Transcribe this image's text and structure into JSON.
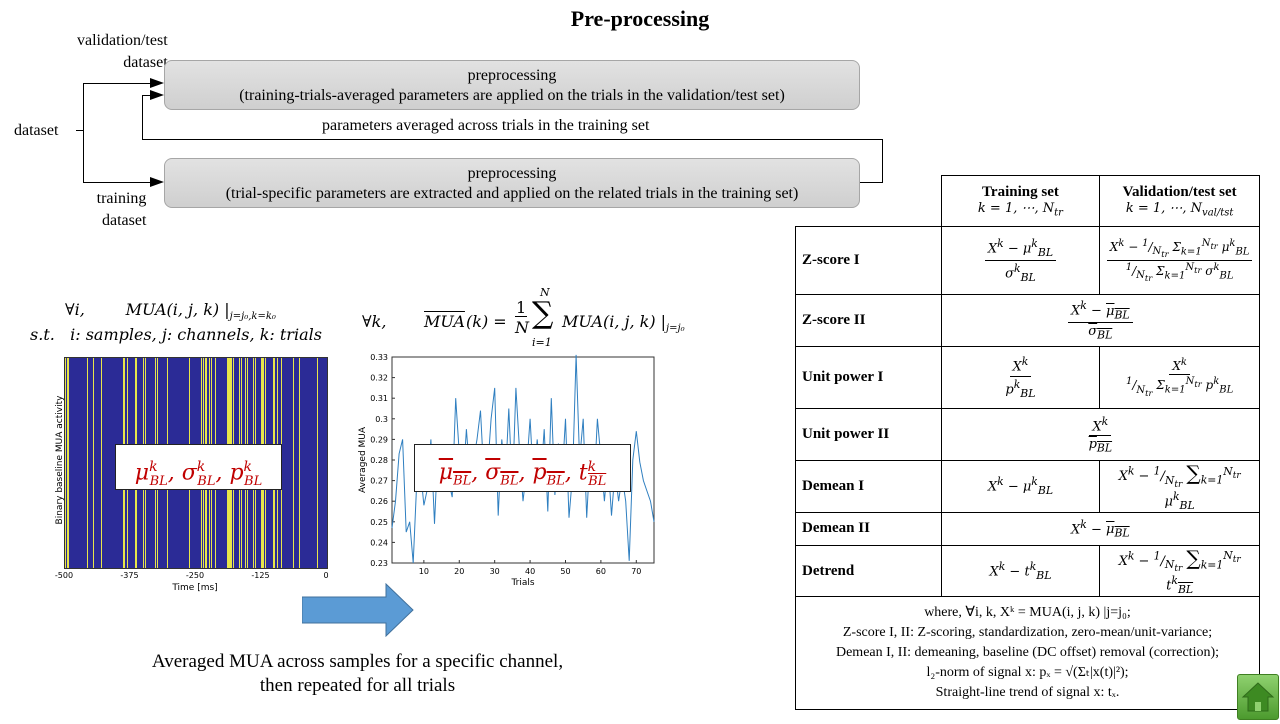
{
  "title": "Pre-processing",
  "flow": {
    "validation_label_1": "validation/test",
    "validation_label_2": "dataset",
    "dataset_label": "dataset",
    "training_label_1": "training",
    "training_label_2": "dataset",
    "box_top_line1": "preprocessing",
    "box_top_line2": "(training-trials-averaged  parameters are applied on the trials in the validation/test  set)",
    "params_label": "parameters averaged across trials in the training  set",
    "box_bottom_line1": "preprocessing",
    "box_bottom_line2": "(trial-specific  parameters are extracted and applied on the related trials in the training  set)"
  },
  "formula_left": {
    "line1": "∀i,        MUA(i, j, k) |j=j₀,k=k₀",
    "line2": "s.t.    i: samples, j: channels, k: trials"
  },
  "formula_right": "∀k,      MUA(k) = (1/N) Σᵢ₌₁ᴺ MUA(i, j, k) |j=j₀",
  "raster_plot": {
    "ylabel": "Binary baseline MUA activity",
    "xlabel": "Time [ms]",
    "xticks": [
      "-500",
      "-375",
      "-250",
      "-125",
      "0"
    ],
    "overlay": "μᵏBL, σᵏBL, pᵏBL",
    "bg_color": "#2b2b96",
    "line_color": "#e8e64a"
  },
  "chart_data": {
    "type": "line",
    "xlabel": "Trials",
    "ylabel": "Averaged MUA",
    "xlim": [
      1,
      75
    ],
    "ylim": [
      0.23,
      0.33
    ],
    "xticks": [
      10,
      20,
      30,
      40,
      50,
      60,
      70
    ],
    "yticks": [
      "0.23",
      "0.24",
      "0.25",
      "0.26",
      "0.27",
      "0.28",
      "0.29",
      "0.3",
      "0.31",
      "0.32",
      "0.33"
    ],
    "x": [
      1,
      2,
      3,
      4,
      5,
      6,
      7,
      8,
      9,
      10,
      11,
      12,
      13,
      14,
      15,
      16,
      17,
      18,
      19,
      20,
      21,
      22,
      23,
      24,
      25,
      26,
      27,
      28,
      29,
      30,
      31,
      32,
      33,
      34,
      35,
      36,
      37,
      38,
      39,
      40,
      41,
      42,
      43,
      44,
      45,
      46,
      47,
      48,
      49,
      50,
      51,
      52,
      53,
      54,
      55,
      56,
      57,
      58,
      59,
      60,
      61,
      62,
      63,
      64,
      65,
      66,
      67,
      68,
      69,
      70,
      71,
      72,
      73,
      74,
      75
    ],
    "values": [
      0.247,
      0.26,
      0.283,
      0.29,
      0.245,
      0.25,
      0.23,
      0.27,
      0.276,
      0.258,
      0.266,
      0.29,
      0.249,
      0.286,
      0.274,
      0.28,
      0.27,
      0.262,
      0.31,
      0.283,
      0.267,
      0.295,
      0.272,
      0.28,
      0.29,
      0.304,
      0.27,
      0.275,
      0.3,
      0.315,
      0.253,
      0.29,
      0.27,
      0.305,
      0.265,
      0.315,
      0.285,
      0.26,
      0.275,
      0.3,
      0.268,
      0.29,
      0.27,
      0.295,
      0.255,
      0.31,
      0.263,
      0.288,
      0.27,
      0.3,
      0.252,
      0.273,
      0.331,
      0.28,
      0.3,
      0.252,
      0.285,
      0.265,
      0.3,
      0.281,
      0.26,
      0.28,
      0.253,
      0.275,
      0.26,
      0.272,
      0.26,
      0.231,
      0.28,
      0.294,
      0.279,
      0.27,
      0.265,
      0.26,
      0.25
    ],
    "line_color": "#2f7fc0",
    "overlay": "μBL, σBL, pBL, tBL"
  },
  "arrow_color": "#5b9bd5",
  "caption_line1": "Averaged  MUA across samples for a specific channel,",
  "caption_line2": "then repeated  for all trials",
  "table": {
    "col_train_title": "Training set",
    "col_train_sub": "k = 1, ⋯, Ntr",
    "col_val_title": "Validation/test  set",
    "col_val_sub": "k = 1, ⋯, Nval/tst",
    "rows": [
      {
        "name": "Z-score I"
      },
      {
        "name": "Z-score II"
      },
      {
        "name": "Unit power  I"
      },
      {
        "name": "Unit power  II"
      },
      {
        "name": "Demean I"
      },
      {
        "name": "Demean II"
      },
      {
        "name": "Detrend"
      }
    ],
    "notes": [
      "where,  ∀i, k, Xᵏ = MUA(i, j, k) |j=j₀;",
      "Z-score I, II: Z-scoring,  standardization,  zero-mean/unit-variance;",
      "Demean I, II: demeaning,  baseline  (DC offset) removal  (correction);",
      "l₂-norm of signal  x: pₓ = √(Σₜ|x(t)|²);",
      "Straight-line  trend of signal  x: tₓ."
    ]
  },
  "home_color": "#5aa83a"
}
